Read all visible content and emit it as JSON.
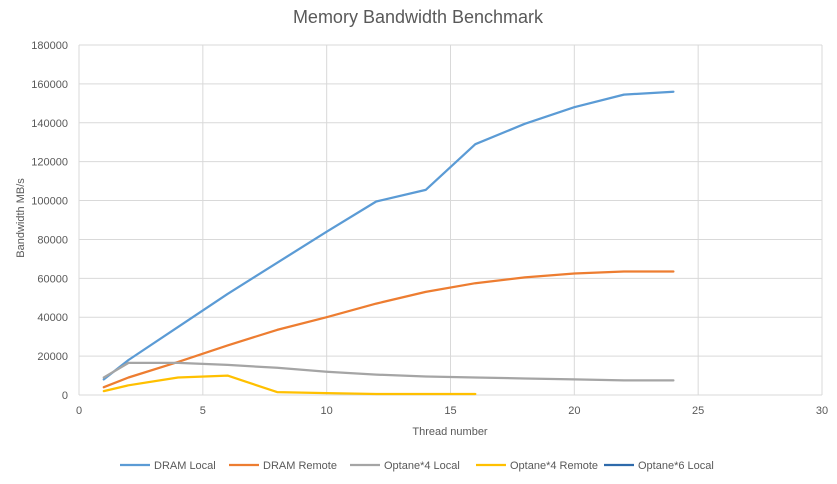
{
  "chart_data": {
    "type": "line",
    "title": "Memory Bandwidth Benchmark",
    "xlabel": "Thread number",
    "ylabel": "Bandwidth MB/s",
    "xlim": [
      0,
      30
    ],
    "ylim": [
      0,
      180000
    ],
    "xticks": [
      0,
      5,
      10,
      15,
      20,
      25,
      30
    ],
    "yticks": [
      0,
      20000,
      40000,
      60000,
      80000,
      100000,
      120000,
      140000,
      160000,
      180000
    ],
    "grid": true,
    "legend_position": "bottom",
    "series": [
      {
        "name": "DRAM Local",
        "color": "#5b9bd5",
        "x": [
          1,
          2,
          4,
          6,
          8,
          10,
          12,
          14,
          16,
          18,
          20,
          22,
          24
        ],
        "y": [
          8000,
          18000,
          35000,
          52000,
          68000,
          84000,
          99500,
          105500,
          129000,
          139500,
          148000,
          154500,
          156000
        ]
      },
      {
        "name": "DRAM Remote",
        "color": "#ed7d31",
        "x": [
          1,
          2,
          4,
          6,
          8,
          10,
          12,
          14,
          16,
          18,
          20,
          22,
          24
        ],
        "y": [
          4000,
          9000,
          17000,
          25500,
          33500,
          40000,
          47000,
          53000,
          57500,
          60500,
          62500,
          63500,
          63500
        ]
      },
      {
        "name": "Optane*4 Local",
        "color": "#a5a5a5",
        "x": [
          1,
          2,
          4,
          6,
          8,
          10,
          12,
          14,
          16,
          18,
          20,
          22,
          24
        ],
        "y": [
          9000,
          16500,
          16500,
          15500,
          14000,
          12000,
          10500,
          9500,
          9000,
          8500,
          8000,
          7500,
          7500
        ]
      },
      {
        "name": "Optane*4 Remote",
        "color": "#ffc000",
        "x": [
          1,
          2,
          4,
          6,
          8,
          10,
          12,
          14,
          16
        ],
        "y": [
          2000,
          5000,
          9000,
          10000,
          1500,
          1000,
          500,
          500,
          500
        ]
      },
      {
        "name": "Optane*6 Local",
        "color": "#2e6aab",
        "x": [],
        "y": []
      }
    ]
  }
}
